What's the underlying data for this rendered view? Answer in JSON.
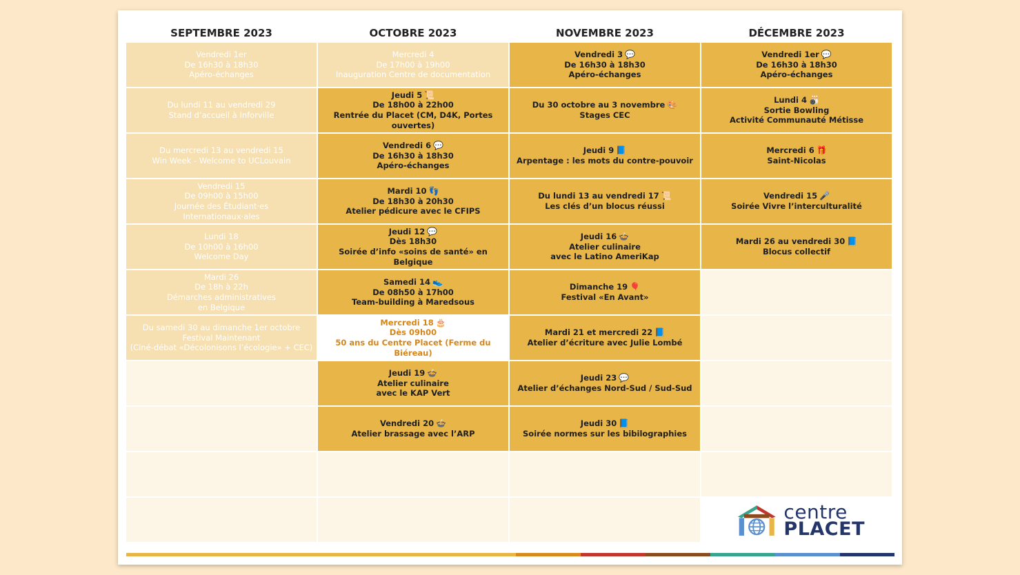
{
  "months": [
    {
      "title": "SEPTEMBRE 2023",
      "cells": [
        {
          "state": "past",
          "lines": [
            "Vendredi 1er",
            "De 16h30 à 18h30",
            "Apéro-échanges"
          ],
          "emoji": ""
        },
        {
          "state": "past",
          "lines": [
            "Du lundi 11 au vendredi 29",
            "Stand d’accueil à Inforville"
          ],
          "emoji": ""
        },
        {
          "state": "past",
          "lines": [
            "Du mercredi 13 au vendredi 15",
            "Win Week - Welcome to UCLouvain"
          ],
          "emoji": ""
        },
        {
          "state": "past",
          "lines": [
            "Vendredi 15",
            "De 09h00 à 15h00",
            "Journée des Étudiant·es",
            "Internationaux·ales"
          ],
          "emoji": ""
        },
        {
          "state": "past",
          "lines": [
            "Lundi 18",
            "De 10h00 à 16h00",
            "Welcome Day"
          ],
          "emoji": ""
        },
        {
          "state": "past",
          "lines": [
            "Mardi 26",
            "De 18h à 22h",
            "Démarches administratives",
            "en Belgique"
          ],
          "emoji": ""
        },
        {
          "state": "past",
          "lines": [
            "Du samedi 30 au dimanche 1er octobre",
            "Festival Maintenant",
            "(Ciné-débat «Décolonisons l’écologie» + CEC)"
          ],
          "emoji": ""
        },
        {
          "state": "empty",
          "lines": [],
          "emoji": ""
        },
        {
          "state": "empty",
          "lines": [],
          "emoji": ""
        },
        {
          "state": "empty",
          "lines": [],
          "emoji": ""
        },
        {
          "state": "empty",
          "lines": [],
          "emoji": ""
        }
      ]
    },
    {
      "title": "OCTOBRE 2023",
      "cells": [
        {
          "state": "past",
          "lines": [
            "Mercredi 4",
            "De 17h00 à 19h00",
            "Inauguration Centre de documentation"
          ],
          "emoji": ""
        },
        {
          "state": "active",
          "lines": [
            "Jeudi 5",
            "De 18h00 à 22h00",
            "Rentrée du Placet (CM, D4K, Portes ouvertes)"
          ],
          "emoji": "📜"
        },
        {
          "state": "active",
          "lines": [
            "Vendredi 6",
            "De 16h30 à 18h30",
            "Apéro-échanges"
          ],
          "emoji": "💬"
        },
        {
          "state": "active",
          "lines": [
            "Mardi 10",
            "De 18h30 à 20h30",
            "Atelier pédicure avec le CFIPS"
          ],
          "emoji": "👣"
        },
        {
          "state": "active",
          "lines": [
            "Jeudi 12",
            "Dès 18h30",
            "Soirée d’info «soins de santé» en Belgique"
          ],
          "emoji": "💬"
        },
        {
          "state": "active",
          "lines": [
            "Samedi 14",
            "De 08h50 à 17h00",
            "Team-building à Maredsous"
          ],
          "emoji": "👟"
        },
        {
          "state": "highlight",
          "lines": [
            "Mercredi 18",
            "Dès 09h00",
            "50 ans du Centre Placet (Ferme du Biéreau)"
          ],
          "emoji": "🎂"
        },
        {
          "state": "active",
          "lines": [
            "Jeudi 19",
            "Atelier culinaire",
            "avec le KAP Vert"
          ],
          "emoji": "🍲"
        },
        {
          "state": "active",
          "lines": [
            "Vendredi 20",
            "Atelier brassage avec l’ARP"
          ],
          "emoji": "🍲"
        },
        {
          "state": "empty",
          "lines": [],
          "emoji": ""
        },
        {
          "state": "empty",
          "lines": [],
          "emoji": ""
        }
      ]
    },
    {
      "title": "NOVEMBRE 2023",
      "cells": [
        {
          "state": "active",
          "lines": [
            "Vendredi 3",
            "De 16h30 à 18h30",
            "Apéro-échanges"
          ],
          "emoji": "💬"
        },
        {
          "state": "active",
          "lines": [
            "Du 30 octobre au 3 novembre",
            "Stages CEC"
          ],
          "emoji": "🎨"
        },
        {
          "state": "active",
          "lines": [
            "Jeudi 9",
            "Arpentage : les mots du contre-pouvoir"
          ],
          "emoji": "📘"
        },
        {
          "state": "active",
          "lines": [
            "Du lundi 13 au vendredi 17",
            "Les clés d’un blocus réussi"
          ],
          "emoji": "📜"
        },
        {
          "state": "active",
          "lines": [
            "Jeudi 16",
            "Atelier culinaire",
            "avec le Latino AmeriKap"
          ],
          "emoji": "🍲"
        },
        {
          "state": "active",
          "lines": [
            "Dimanche 19",
            "Festival «En Avant»"
          ],
          "emoji": "🎈"
        },
        {
          "state": "active",
          "lines": [
            "Mardi 21 et mercredi 22",
            "Atelier d’écriture avec Julie Lombé"
          ],
          "emoji": "📘"
        },
        {
          "state": "active",
          "lines": [
            "Jeudi 23",
            "Atelier d’échanges Nord-Sud / Sud-Sud"
          ],
          "emoji": "💬"
        },
        {
          "state": "active",
          "lines": [
            "Jeudi 30",
            "Soirée normes sur les bibilographies"
          ],
          "emoji": "📘"
        },
        {
          "state": "empty",
          "lines": [],
          "emoji": ""
        },
        {
          "state": "empty",
          "lines": [],
          "emoji": ""
        }
      ]
    },
    {
      "title": "DÉCEMBRE 2023",
      "cells": [
        {
          "state": "active",
          "lines": [
            "Vendredi 1er",
            "De 16h30 à 18h30",
            "Apéro-échanges"
          ],
          "emoji": "💬"
        },
        {
          "state": "active",
          "lines": [
            "Lundi 4",
            "Sortie Bowling",
            "Activité Communauté Métisse"
          ],
          "emoji": "🎳"
        },
        {
          "state": "active",
          "lines": [
            "Mercredi 6",
            "Saint-Nicolas"
          ],
          "emoji": "🎁"
        },
        {
          "state": "active",
          "lines": [
            "Vendredi 15",
            "Soirée Vivre l’interculturalité"
          ],
          "emoji": "🎤"
        },
        {
          "state": "active",
          "lines": [
            "Mardi 26 au vendredi 30",
            "Blocus collectif"
          ],
          "emoji": "📘"
        },
        {
          "state": "empty",
          "lines": [],
          "emoji": ""
        },
        {
          "state": "empty",
          "lines": [],
          "emoji": ""
        },
        {
          "state": "empty",
          "lines": [],
          "emoji": ""
        },
        {
          "state": "empty",
          "lines": [],
          "emoji": ""
        },
        {
          "state": "empty",
          "lines": [],
          "emoji": ""
        },
        {
          "state": "logo",
          "lines": [],
          "emoji": ""
        }
      ]
    }
  ],
  "logo": {
    "line1": "centre",
    "line2": "PLACET"
  },
  "colors": {
    "past": "#f6dfb0",
    "active": "#e8b648",
    "empty": "#fdf5e6",
    "highlight_text": "#d4861a",
    "bar": [
      "#e8b648",
      "#d98a1c",
      "#c1362d",
      "#8a4b1e",
      "#3aa58f",
      "#5b8fd0",
      "#23356b"
    ]
  }
}
